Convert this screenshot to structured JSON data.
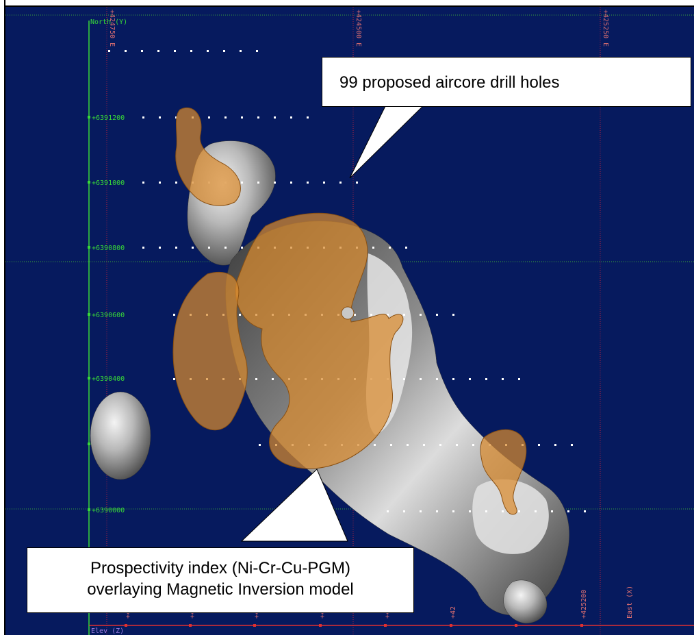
{
  "colors": {
    "background": "#061a5e",
    "axis_green": "#38d838",
    "axis_red": "#e03030",
    "grid_green": "#3aa63a",
    "grid_red": "#b02040",
    "prospectivity_orange": "#d98a2e",
    "model_gray": "#9a9a9a",
    "axis_z_label": "#9b7be0"
  },
  "axes": {
    "north_label": "North (Y)",
    "east_label": "East (X)",
    "elev_label": "Elev (Z)",
    "north_ticks": [
      "+6391200",
      "+6391000",
      "+6390800",
      "+6390600",
      "+6390400",
      "+6390000"
    ],
    "top_grid_labels": [
      "+424750 E",
      "+424500 E",
      "+425250 E"
    ],
    "bottom_ticks": [
      "+4",
      "+4",
      "+4",
      "+4",
      "+4",
      "+42",
      "+425200"
    ]
  },
  "callouts": {
    "drill_holes": "99 proposed aircore drill holes",
    "prospectivity_line1": "Prospectivity  index  (Ni-Cr-Cu-PGM)",
    "prospectivity_line2": "overlaying Magnetic Inversion model"
  },
  "icons": {
    "drill_hole_marker": "white-dot-icon",
    "axis_tick_marker": "square-tick-icon"
  }
}
